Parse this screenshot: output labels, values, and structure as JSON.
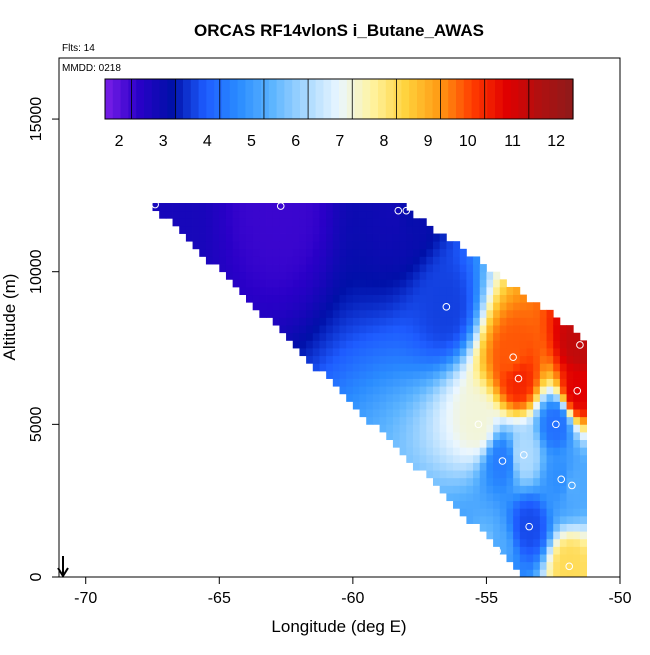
{
  "chart_data": {
    "type": "heatmap",
    "title": "ORCAS RF14vlonS i_Butane_AWAS",
    "flights_label": "Flts: 14",
    "date_label": "MMDD: 0218",
    "xlabel": "Longitude (deg E)",
    "ylabel": "Altitude (m)",
    "xlim": [
      -71,
      -50
    ],
    "ylim": [
      0,
      17000
    ],
    "x_ticks": [
      -70,
      -65,
      -60,
      -55,
      -50
    ],
    "x_tick_labels": [
      "-70",
      "-65",
      "-60",
      "-55",
      "-50"
    ],
    "y_ticks": [
      0,
      5000,
      10000,
      15000
    ],
    "y_tick_labels": [
      "0",
      "5000",
      "10000",
      "15000"
    ],
    "colorbar": {
      "min": 1.4,
      "max": 12,
      "ticks": [
        2,
        3,
        4,
        5,
        6,
        7,
        8,
        9,
        10,
        11,
        12
      ],
      "tick_labels": [
        "2",
        "3",
        "4",
        "5",
        "6",
        "7",
        "8",
        "9",
        "10",
        "11",
        "12"
      ],
      "colors": [
        "#7a1fe8",
        "#2a00c8",
        "#0010a8",
        "#1e5cff",
        "#2a8cff",
        "#5cb4ff",
        "#a8d8ff",
        "#eaf6ff",
        "#fff3a0",
        "#ffd23c",
        "#ff9a14",
        "#ff3c00",
        "#e10000",
        "#b01010",
        "#8e1a1a"
      ]
    },
    "grid": false,
    "samples": [
      {
        "lon": -67.4,
        "alt": 12200,
        "value": 2.5
      },
      {
        "lon": -62.7,
        "alt": 12150,
        "value": 2.0
      },
      {
        "lon": -58.3,
        "alt": 12000,
        "value": 2.6
      },
      {
        "lon": -58.0,
        "alt": 12000,
        "value": 2.8
      },
      {
        "lon": -56.5,
        "alt": 8850,
        "value": 3.4
      },
      {
        "lon": -54.0,
        "alt": 7200,
        "value": 9.5
      },
      {
        "lon": -53.8,
        "alt": 6500,
        "value": 10.0
      },
      {
        "lon": -51.5,
        "alt": 7600,
        "value": 11.0
      },
      {
        "lon": -51.6,
        "alt": 6100,
        "value": 10.5
      },
      {
        "lon": -55.3,
        "alt": 5000,
        "value": 7.0
      },
      {
        "lon": -52.4,
        "alt": 5000,
        "value": 4.0
      },
      {
        "lon": -53.6,
        "alt": 4000,
        "value": 6.0
      },
      {
        "lon": -54.4,
        "alt": 3800,
        "value": 4.2
      },
      {
        "lon": -52.2,
        "alt": 3200,
        "value": 4.5
      },
      {
        "lon": -51.8,
        "alt": 3000,
        "value": 5.0
      },
      {
        "lon": -53.4,
        "alt": 1650,
        "value": 3.5
      },
      {
        "lon": -55.0,
        "alt": 950,
        "value": 5.5
      },
      {
        "lon": -54.6,
        "alt": 850,
        "value": 5.0
      },
      {
        "lon": -55.0,
        "alt": 350,
        "value": 4.0
      },
      {
        "lon": -54.9,
        "alt": 150,
        "value": 3.0
      },
      {
        "lon": -51.9,
        "alt": 350,
        "value": 8.0
      }
    ]
  }
}
